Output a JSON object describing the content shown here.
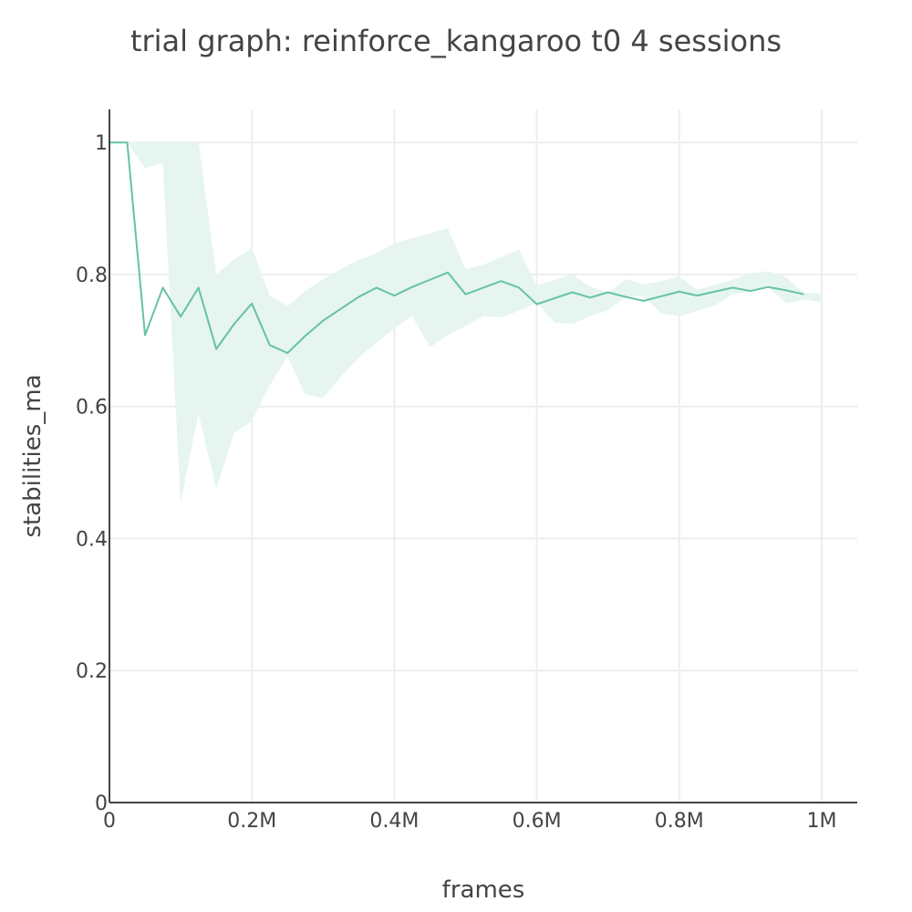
{
  "chart_data": {
    "type": "line",
    "title": "trial graph: reinforce_kangaroo t0 4 sessions",
    "xlabel": "frames",
    "ylabel": "stabilities_ma",
    "xlim": [
      0,
      1050000
    ],
    "ylim": [
      0,
      1.05
    ],
    "x_ticks": [
      {
        "value": 0,
        "label": "0"
      },
      {
        "value": 200000,
        "label": "0.2M"
      },
      {
        "value": 400000,
        "label": "0.4M"
      },
      {
        "value": 600000,
        "label": "0.6M"
      },
      {
        "value": 800000,
        "label": "0.8M"
      },
      {
        "value": 1000000,
        "label": "1M"
      }
    ],
    "y_ticks": [
      {
        "value": 0,
        "label": "0"
      },
      {
        "value": 0.2,
        "label": "0.2"
      },
      {
        "value": 0.4,
        "label": "0.4"
      },
      {
        "value": 0.6,
        "label": "0.6"
      },
      {
        "value": 0.8,
        "label": "0.8"
      },
      {
        "value": 1,
        "label": "1"
      }
    ],
    "grid": true,
    "legend": "none",
    "colors": {
      "line": "#66c2a5",
      "band": "#e6f5ef",
      "grid": "#eeeeee",
      "axis": "#444444",
      "text": "#444444"
    },
    "series": [
      {
        "x": [
          0,
          25000,
          50000,
          75000,
          100000,
          125000,
          150000,
          175000,
          200000,
          225000,
          250000,
          275000,
          300000,
          325000,
          350000,
          375000,
          400000,
          425000,
          450000,
          475000,
          500000,
          525000,
          550000,
          575000,
          600000,
          625000,
          650000,
          675000,
          700000,
          725000,
          750000,
          775000,
          800000,
          825000,
          850000,
          875000,
          900000,
          925000,
          950000,
          975000
        ],
        "y": [
          1.0,
          1.0,
          0.708,
          0.78,
          0.736,
          0.78,
          0.687,
          0.725,
          0.756,
          0.693,
          0.681,
          0.707,
          0.73,
          0.748,
          0.766,
          0.78,
          0.768,
          0.781,
          0.792,
          0.803,
          0.77,
          0.78,
          0.79,
          0.78,
          0.755,
          0.764,
          0.773,
          0.765,
          0.773,
          0.766,
          0.76,
          0.767,
          0.774,
          0.768,
          0.774,
          0.78,
          0.775,
          0.781,
          0.776,
          0.77
        ],
        "band": {
          "x": [
            0,
            25000,
            50000,
            75000,
            100000,
            125000,
            150000,
            175000,
            200000,
            225000,
            250000,
            275000,
            300000,
            325000,
            350000,
            375000,
            400000,
            425000,
            450000,
            475000,
            500000,
            525000,
            550000,
            575000,
            600000,
            625000,
            650000,
            675000,
            700000,
            725000,
            750000,
            775000,
            800000,
            825000,
            850000,
            875000,
            900000,
            925000,
            950000,
            975000,
            1000000
          ],
          "upper": [
            1.0,
            1.0,
            1.0,
            1.0,
            1.0,
            1.0,
            0.8,
            0.823,
            0.84,
            0.768,
            0.752,
            0.775,
            0.793,
            0.808,
            0.822,
            0.832,
            0.847,
            0.855,
            0.862,
            0.87,
            0.808,
            0.815,
            0.826,
            0.838,
            0.783,
            0.792,
            0.8,
            0.782,
            0.772,
            0.793,
            0.785,
            0.79,
            0.797,
            0.777,
            0.784,
            0.792,
            0.802,
            0.805,
            0.796,
            0.772,
            0.772
          ],
          "lower": [
            1.0,
            1.0,
            0.961,
            0.969,
            0.454,
            0.59,
            0.475,
            0.56,
            0.578,
            0.632,
            0.675,
            0.618,
            0.613,
            0.645,
            0.674,
            0.697,
            0.718,
            0.737,
            0.69,
            0.708,
            0.722,
            0.737,
            0.735,
            0.745,
            0.757,
            0.727,
            0.725,
            0.737,
            0.746,
            0.766,
            0.767,
            0.741,
            0.737,
            0.745,
            0.753,
            0.77,
            0.774,
            0.781,
            0.756,
            0.762,
            0.758
          ]
        }
      }
    ]
  }
}
